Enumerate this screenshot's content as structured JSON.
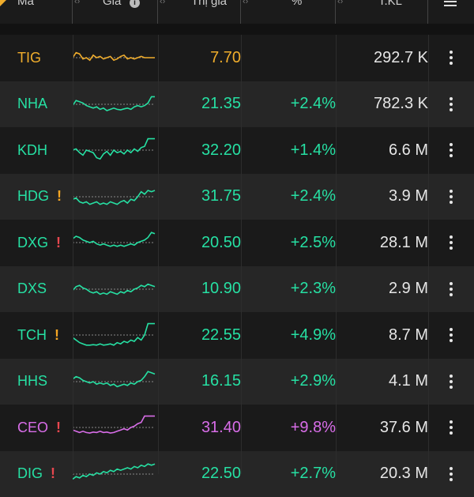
{
  "colors": {
    "ref": "#f0ad2c",
    "up": "#26e0a3",
    "ceiling": "#d86de8",
    "warn_orange": "#f5a623",
    "warn_red": "#e8474f"
  },
  "header": {
    "col_symbol": "Mã",
    "col_chart": "Giá",
    "col_price": "Thị giá",
    "col_pct": "%",
    "col_vol": "T.KL",
    "menu_icon": "hamburger-icon"
  },
  "rows": [
    {
      "symbol": "TIG",
      "warning": "",
      "warning_level": "none",
      "price": "7.70",
      "pct": "",
      "volume": "292.7 K",
      "status": "ref",
      "spark": [
        0.5,
        0.3,
        0.35,
        0.55,
        0.5,
        0.6,
        0.4,
        0.5,
        0.45,
        0.55,
        0.5,
        0.45,
        0.6,
        0.55,
        0.45,
        0.4,
        0.55,
        0.5,
        0.55,
        0.5,
        0.45,
        0.5,
        0.5,
        0.5,
        0.5
      ]
    },
    {
      "symbol": "NHA",
      "warning": "",
      "warning_level": "none",
      "price": "21.35",
      "pct": "+2.4%",
      "volume": "782.3 K",
      "status": "up",
      "spark": [
        0.55,
        0.35,
        0.4,
        0.45,
        0.55,
        0.6,
        0.65,
        0.6,
        0.7,
        0.65,
        0.75,
        0.7,
        0.65,
        0.7,
        0.72,
        0.68,
        0.65,
        0.7,
        0.6,
        0.55,
        0.6,
        0.55,
        0.45,
        0.2,
        0.2
      ]
    },
    {
      "symbol": "KDH",
      "warning": "",
      "warning_level": "none",
      "price": "32.20",
      "pct": "+1.4%",
      "volume": "6.6 M",
      "status": "up",
      "spark": [
        0.5,
        0.45,
        0.6,
        0.7,
        0.5,
        0.55,
        0.6,
        0.8,
        0.85,
        0.65,
        0.55,
        0.7,
        0.5,
        0.6,
        0.55,
        0.65,
        0.5,
        0.6,
        0.45,
        0.55,
        0.4,
        0.35,
        0.05,
        0.05,
        0.05
      ]
    },
    {
      "symbol": "HDG",
      "warning": "!",
      "warning_level": "orange",
      "price": "31.75",
      "pct": "+2.4%",
      "volume": "3.9 M",
      "status": "up",
      "spark": [
        0.6,
        0.55,
        0.7,
        0.75,
        0.7,
        0.8,
        0.75,
        0.7,
        0.8,
        0.75,
        0.8,
        0.7,
        0.75,
        0.8,
        0.7,
        0.65,
        0.75,
        0.6,
        0.65,
        0.5,
        0.3,
        0.4,
        0.25,
        0.3,
        0.25
      ]
    },
    {
      "symbol": "DXG",
      "warning": "!",
      "warning_level": "red",
      "price": "20.50",
      "pct": "+2.5%",
      "volume": "28.1 M",
      "status": "up",
      "spark": [
        0.35,
        0.25,
        0.3,
        0.4,
        0.45,
        0.5,
        0.45,
        0.55,
        0.6,
        0.55,
        0.6,
        0.65,
        0.6,
        0.65,
        0.6,
        0.65,
        0.6,
        0.55,
        0.6,
        0.5,
        0.45,
        0.4,
        0.3,
        0.1,
        0.15
      ]
    },
    {
      "symbol": "DXS",
      "warning": "",
      "warning_level": "none",
      "price": "10.90",
      "pct": "+2.3%",
      "volume": "2.9 M",
      "status": "up",
      "spark": [
        0.55,
        0.4,
        0.35,
        0.45,
        0.5,
        0.6,
        0.65,
        0.6,
        0.7,
        0.65,
        0.7,
        0.6,
        0.65,
        0.7,
        0.6,
        0.65,
        0.55,
        0.6,
        0.5,
        0.45,
        0.35,
        0.4,
        0.3,
        0.35,
        0.4
      ]
    },
    {
      "symbol": "TCH",
      "warning": "!",
      "warning_level": "orange",
      "price": "22.55",
      "pct": "+4.9%",
      "volume": "8.7 M",
      "status": "up",
      "spark": [
        0.6,
        0.7,
        0.8,
        0.85,
        0.9,
        0.9,
        0.88,
        0.9,
        0.85,
        0.9,
        0.88,
        0.85,
        0.9,
        0.8,
        0.85,
        0.75,
        0.8,
        0.7,
        0.75,
        0.6,
        0.7,
        0.5,
        0.05,
        0.05,
        0.05
      ]
    },
    {
      "symbol": "HHS",
      "warning": "",
      "warning_level": "none",
      "price": "16.15",
      "pct": "+2.9%",
      "volume": "4.1 M",
      "status": "up",
      "spark": [
        0.4,
        0.3,
        0.35,
        0.45,
        0.5,
        0.55,
        0.5,
        0.6,
        0.55,
        0.6,
        0.55,
        0.65,
        0.6,
        0.7,
        0.65,
        0.6,
        0.65,
        0.55,
        0.6,
        0.5,
        0.45,
        0.3,
        0.1,
        0.15,
        0.2
      ]
    },
    {
      "symbol": "CEO",
      "warning": "!",
      "warning_level": "red",
      "price": "31.40",
      "pct": "+9.8%",
      "volume": "37.6 M",
      "status": "ceiling",
      "spark": [
        0.6,
        0.65,
        0.7,
        0.65,
        0.7,
        0.72,
        0.68,
        0.7,
        0.65,
        0.7,
        0.68,
        0.72,
        0.7,
        0.65,
        0.6,
        0.55,
        0.6,
        0.5,
        0.45,
        0.35,
        0.3,
        0.05,
        0.05,
        0.05,
        0.05
      ]
    },
    {
      "symbol": "DIG",
      "warning": "!",
      "warning_level": "red",
      "price": "22.50",
      "pct": "+2.7%",
      "volume": "20.3 M",
      "status": "up",
      "spark": [
        0.7,
        0.6,
        0.65,
        0.55,
        0.6,
        0.5,
        0.55,
        0.45,
        0.5,
        0.4,
        0.45,
        0.35,
        0.4,
        0.3,
        0.35,
        0.3,
        0.25,
        0.3,
        0.2,
        0.25,
        0.15,
        0.2,
        0.1,
        0.15,
        0.1
      ]
    }
  ]
}
